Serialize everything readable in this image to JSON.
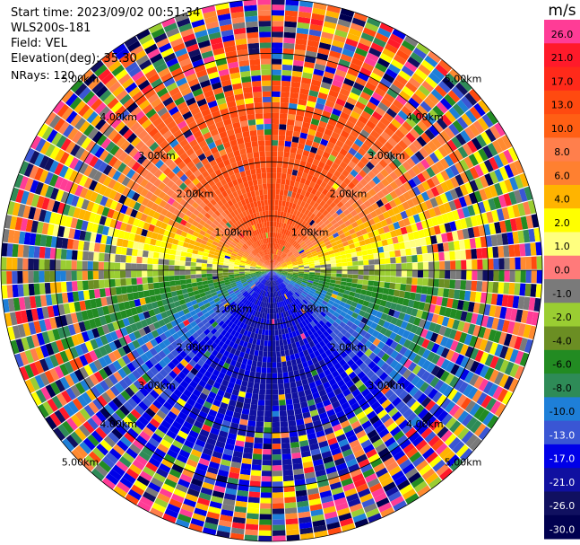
{
  "info": {
    "start_time": "Start time: 2023/09/02 00:51:34",
    "instrument": "WLS200s-181",
    "field": "Field: VEL",
    "elevation": "Elevation(deg): 35.30",
    "nrays": "NRays: 120"
  },
  "chart_data": {
    "type": "polar-ppi",
    "title": "",
    "field": "VEL",
    "units": "m/s",
    "n_rays": 120,
    "max_range_km": 5.0,
    "range_rings_km": [
      1.0,
      2.0,
      3.0,
      4.0,
      5.0
    ],
    "range_labels": [
      "1.00km",
      "2.00km",
      "3.00km",
      "4.00km",
      "5.00km"
    ],
    "colorbar": {
      "title": "m/s",
      "ticks": [
        "26.0",
        "21.0",
        "17.0",
        "13.0",
        "10.0",
        "8.0",
        "6.0",
        "4.0",
        "2.0",
        "1.0",
        "0.0",
        "-1.0",
        "-2.0",
        "-4.0",
        "-6.0",
        "-8.0",
        "-10.0",
        "-13.0",
        "-17.0",
        "-21.0",
        "-26.0",
        "-30.0"
      ],
      "colors": [
        "#ff3c96",
        "#ff1a2a",
        "#ff2a1a",
        "#ff4a10",
        "#ff5f14",
        "#ff7f4c",
        "#ff8030",
        "#ffb400",
        "#ffff00",
        "#ffff7f",
        "#ff7a7a",
        "#7a7a7a",
        "#9acd32",
        "#6b8e23",
        "#228b22",
        "#2e8b57",
        "#1e7fd8",
        "#3a56d4",
        "#0000e8",
        "#1010a0",
        "#101060",
        "#000050"
      ]
    },
    "pattern": "wind from south: positive velocities toward north (top), negative toward south (bottom); noisy speckle beyond ~2.5 km"
  }
}
